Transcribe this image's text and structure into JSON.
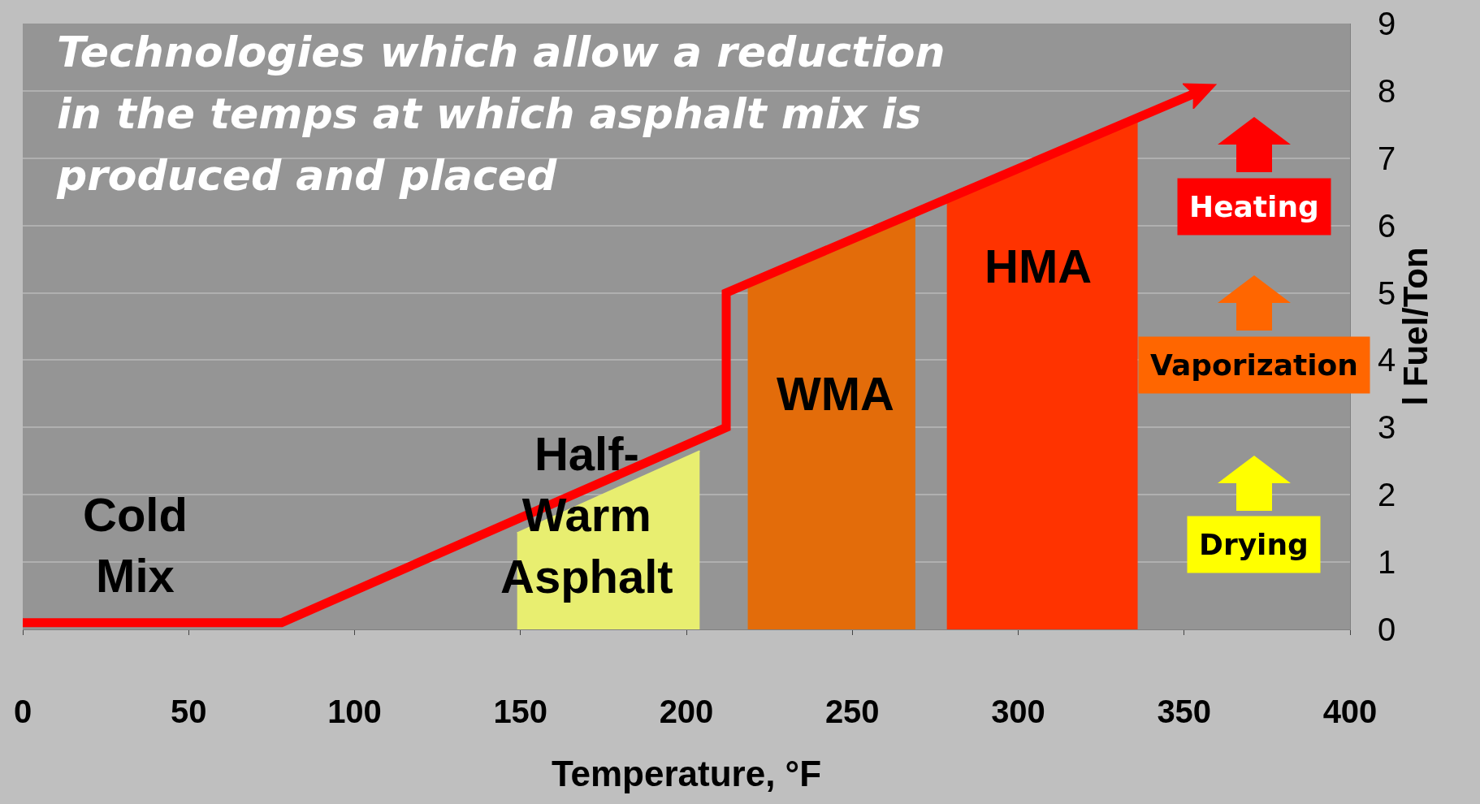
{
  "chart_data": {
    "type": "line",
    "title": "Technologies which allow a reduction in the temps at which asphalt mix is produced and placed",
    "xlabel": "Temperature, °F",
    "ylabel": "l Fuel/Ton",
    "xlim": [
      0,
      400
    ],
    "xticks": [
      0,
      50,
      100,
      150,
      200,
      250,
      300,
      350,
      400
    ],
    "ylim": [
      0,
      9
    ],
    "yticks": [
      0,
      1,
      2,
      3,
      4,
      5,
      6,
      7,
      8,
      9
    ],
    "grid": "y",
    "series": [
      {
        "type": "area",
        "color": "#e8ee70",
        "x": [
          149,
          204
        ],
        "values": [
          1.43,
          2.65
        ]
      },
      {
        "type": "area",
        "color": "#e36c0a",
        "x": [
          218.5,
          269
        ],
        "values": [
          5.19,
          6.2
        ]
      },
      {
        "type": "area",
        "color": "#ff3300",
        "x": [
          278.5,
          336
        ],
        "values": [
          6.45,
          7.63
        ]
      },
      {
        "color": "#ff0000",
        "x": [
          0,
          78,
          212,
          212,
          355
        ],
        "values": [
          0.1,
          0.1,
          3,
          5,
          8
        ]
      }
    ],
    "annotations": [
      "Cold Mix",
      "Half-Warm Asphalt",
      "WMA",
      "HMA",
      "Heating",
      "Vaporization",
      "Drying"
    ]
  }
}
